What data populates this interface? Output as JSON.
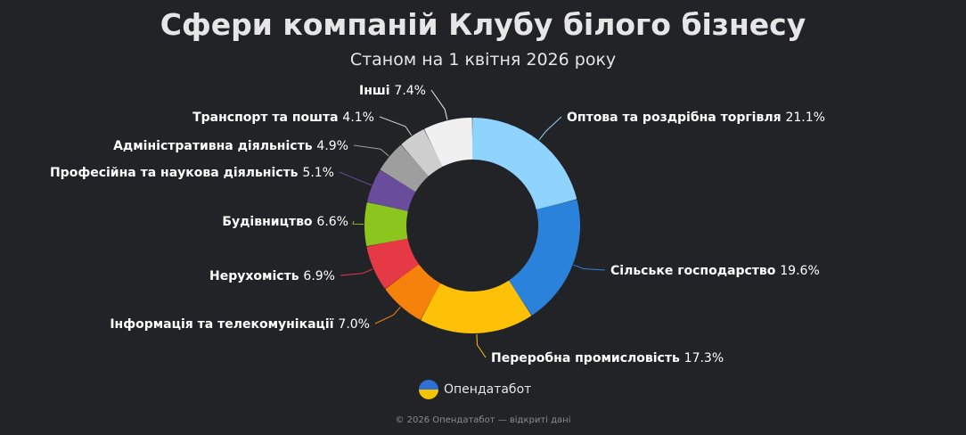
{
  "header": {
    "title": "Сфери компаній Клубу білого бізнесу",
    "subtitle": "Станом на 1 квітня 2026 року"
  },
  "brand": {
    "name": "Опендатабот",
    "logo_icon": "opendatabot-logo-icon"
  },
  "footer": {
    "text": "© 2026 Опендатабот — відкриті дані"
  },
  "chart_data": {
    "type": "pie",
    "style": "donut",
    "title": "Сфери компаній Клубу білого бізнесу",
    "subtitle": "Станом на 1 квітня 2026 року",
    "unit": "%",
    "slices": [
      {
        "label": "Оптова та роздрібна торгівля",
        "value": 21.1,
        "value_label": "21.1%",
        "color": "#8fd3ff"
      },
      {
        "label": "Сільське господарство",
        "value": 19.6,
        "value_label": "19.6%",
        "color": "#2b82db"
      },
      {
        "label": "Переробна промисловість",
        "value": 17.3,
        "value_label": "17.3%",
        "color": "#ffc107"
      },
      {
        "label": "Інформація та телекомунікації",
        "value": 7.0,
        "value_label": "7.0%",
        "color": "#f5820a"
      },
      {
        "label": "Нерухомість",
        "value": 6.9,
        "value_label": "6.9%",
        "color": "#e63946"
      },
      {
        "label": "Будівництво",
        "value": 6.6,
        "value_label": "6.6%",
        "color": "#8dc51f"
      },
      {
        "label": "Професійна та наукова діяльність",
        "value": 5.1,
        "value_label": "5.1%",
        "color": "#6a4c9c"
      },
      {
        "label": "Адміністративна діяльність",
        "value": 4.9,
        "value_label": "4.9%",
        "color": "#9e9e9e"
      },
      {
        "label": "Транспорт та пошта",
        "value": 4.1,
        "value_label": "4.1%",
        "color": "#cfcfcf"
      },
      {
        "label": "Інші",
        "value": 7.4,
        "value_label": "7.4%",
        "color": "#f0f0f0"
      }
    ]
  }
}
